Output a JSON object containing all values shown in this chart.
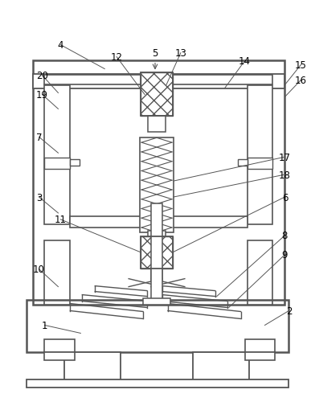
{
  "figsize": [
    3.87,
    5.06
  ],
  "dpi": 100,
  "bg_color": "#ffffff",
  "lc": "#555555",
  "lw": 1.3
}
